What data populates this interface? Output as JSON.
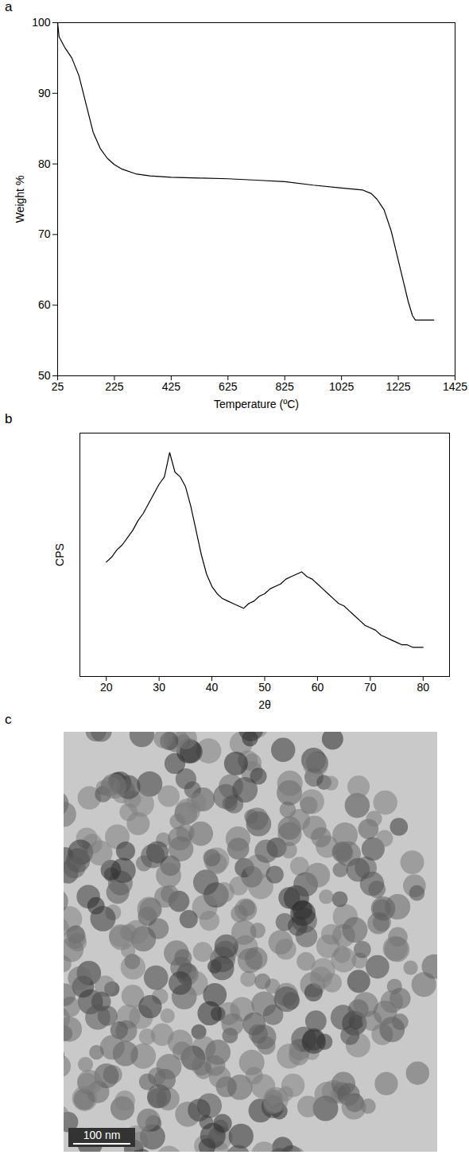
{
  "chart_data": [
    {
      "type": "line",
      "title": "a",
      "x_label": "Temperature (ºC)",
      "y_label": "Weight %",
      "x": [
        25,
        30,
        50,
        75,
        100,
        125,
        150,
        175,
        200,
        225,
        250,
        300,
        350,
        425,
        525,
        625,
        725,
        825,
        925,
        1025,
        1100,
        1130,
        1150,
        1175,
        1200,
        1230,
        1260,
        1275,
        1285,
        1300,
        1350
      ],
      "values": [
        100,
        98,
        96.5,
        95,
        92.5,
        88.5,
        84.5,
        82.2,
        80.8,
        79.9,
        79.3,
        78.6,
        78.3,
        78.1,
        78,
        77.9,
        77.7,
        77.5,
        77,
        76.6,
        76.3,
        75.8,
        75,
        73.5,
        70.5,
        65.5,
        60.5,
        58.5,
        57.9,
        57.9,
        57.9
      ],
      "color": "#000000",
      "xlim": [
        25,
        1425
      ],
      "ylim": [
        50,
        100
      ],
      "xticks": [
        25,
        225,
        425,
        625,
        825,
        1025,
        1225,
        1425
      ],
      "yticks": [
        50,
        60,
        70,
        80,
        90,
        100
      ]
    },
    {
      "type": "line",
      "title": "b",
      "x_label": "2θ",
      "y_label": "CPS",
      "x": [
        20,
        21,
        22,
        23,
        24,
        25,
        26,
        27,
        28,
        29,
        30,
        31,
        32,
        33,
        34,
        35,
        36,
        37,
        38,
        39,
        40,
        41,
        42,
        43,
        44,
        45,
        46,
        47,
        48,
        49,
        50,
        51,
        52,
        53,
        54,
        55,
        56,
        57,
        58,
        59,
        60,
        61,
        62,
        63,
        64,
        65,
        66,
        67,
        68,
        69,
        70,
        71,
        72,
        73,
        74,
        75,
        76,
        77,
        78,
        79,
        80
      ],
      "values": [
        47,
        49,
        52,
        54,
        57,
        60,
        64,
        67,
        71,
        75,
        79,
        82,
        92,
        84,
        82,
        78,
        70,
        60,
        50,
        42,
        37,
        34,
        32,
        31,
        30,
        29,
        28,
        30,
        31,
        33,
        34,
        36,
        37,
        38,
        40,
        41,
        42,
        43,
        41,
        40,
        38,
        36,
        34,
        32,
        30,
        29,
        27,
        25,
        23,
        21,
        20,
        19,
        17,
        16,
        15,
        14,
        13,
        13,
        12,
        12,
        12
      ],
      "color": "#000000",
      "xlim": [
        15,
        85
      ],
      "ylim": [
        0,
        100
      ],
      "xticks": [
        20,
        30,
        40,
        50,
        60,
        70,
        80
      ],
      "yticks": [],
      "tick_labels": "x"
    }
  ],
  "image": {
    "title": "c",
    "scale_bar": "100 nm"
  }
}
